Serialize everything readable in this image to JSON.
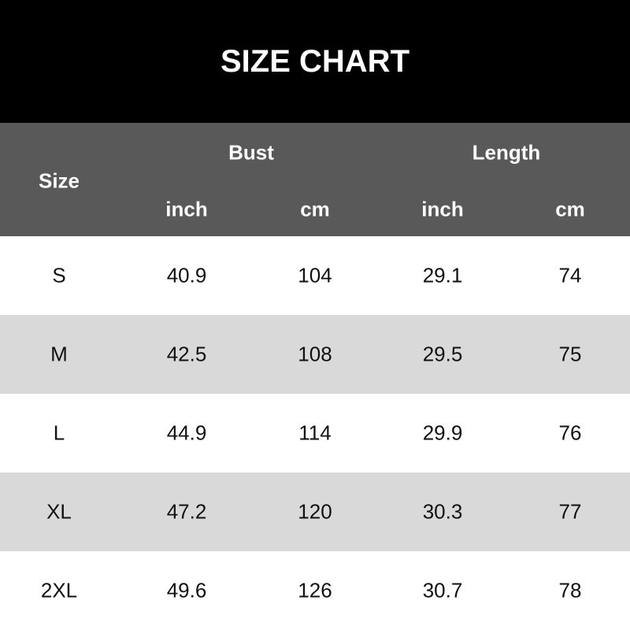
{
  "title": "SIZE CHART",
  "header": {
    "size": "Size",
    "bust": "Bust",
    "length": "Length",
    "units": [
      "inch",
      "cm",
      "inch",
      "cm"
    ]
  },
  "rows": [
    {
      "size": "S",
      "bust_inch": "40.9",
      "bust_cm": "104",
      "length_inch": "29.1",
      "length_cm": "74"
    },
    {
      "size": "M",
      "bust_inch": "42.5",
      "bust_cm": "108",
      "length_inch": "29.5",
      "length_cm": "75"
    },
    {
      "size": "L",
      "bust_inch": "44.9",
      "bust_cm": "114",
      "length_inch": "29.9",
      "length_cm": "76"
    },
    {
      "size": "XL",
      "bust_inch": "47.2",
      "bust_cm": "120",
      "length_inch": "30.3",
      "length_cm": "77"
    },
    {
      "size": "2XL",
      "bust_inch": "49.6",
      "bust_cm": "126",
      "length_inch": "30.7",
      "length_cm": "78"
    }
  ]
}
